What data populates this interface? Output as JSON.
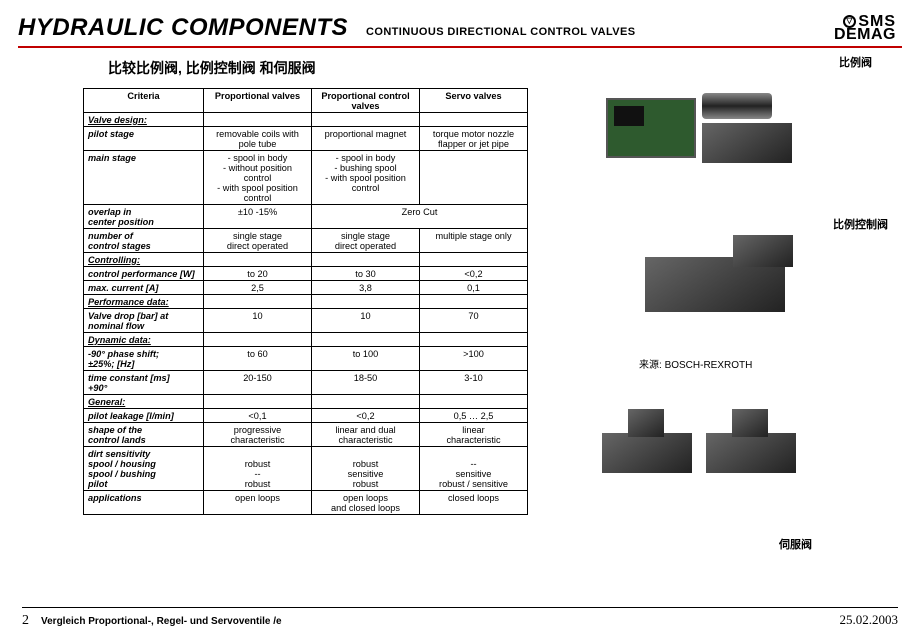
{
  "header": {
    "title_main": "HYDRAULIC COMPONENTS",
    "title_sub": "CONTINUOUS DIRECTIONAL CONTROL VALVES",
    "logo_top": "SMS",
    "logo_bottom": "DEMAG"
  },
  "subtitle": "比较比例阀, 比例控制阀 和伺服阀",
  "table": {
    "headers": [
      "Criteria",
      "Proportional valves",
      "Proportional control valves",
      "Servo valves"
    ],
    "sections": [
      {
        "title": "Valve design:",
        "rows": [
          {
            "label": "pilot stage",
            "c1": "removable coils with pole tube",
            "c2": "proportional magnet",
            "c3": "torque motor nozzle flapper or jet pipe"
          },
          {
            "label": "main stage",
            "c1": "- spool in body\n- without position control\n- with spool position control",
            "c2": "- spool in body\n- bushing spool\n- with spool position control",
            "c3": ""
          },
          {
            "label": "overlap in\ncenter position",
            "c1": "±10 -15%",
            "span23": "Zero Cut"
          },
          {
            "label": "number of\ncontrol stages",
            "c1": "single stage\ndirect operated",
            "c2": "single stage\ndirect operated",
            "c3": "multiple stage only"
          }
        ]
      },
      {
        "title": "Controlling:",
        "rows": [
          {
            "label": "control performance [W]",
            "c1": "to 20",
            "c2": "to 30",
            "c3": "<0,2"
          },
          {
            "label": "max. current [A]",
            "c1": "2,5",
            "c2": "3,8",
            "c3": "0,1"
          }
        ]
      },
      {
        "title": "Performance data:",
        "rows": [
          {
            "label": "Valve drop [bar] at\nnominal flow",
            "c1": "10",
            "c2": "10",
            "c3": "70"
          }
        ]
      },
      {
        "title": "Dynamic data:",
        "rows": [
          {
            "label": "-90° phase shift;\n±25%; [Hz]",
            "c1": "to 60",
            "c2": "to 100",
            "c3": ">100"
          },
          {
            "label": "time constant [ms]\n+90°",
            "c1": "20-150",
            "c2": "18-50",
            "c3": "3-10"
          }
        ]
      },
      {
        "title": "General:",
        "rows": [
          {
            "label": "pilot leakage [l/min]",
            "c1": "<0,1",
            "c2": "<0,2",
            "c3": "0,5 … 2,5"
          },
          {
            "label": "shape of the\ncontrol lands",
            "c1": "progressive\ncharacteristic",
            "c2": "linear and dual\ncharacteristic",
            "c3": "linear\ncharacteristic"
          },
          {
            "label_html": "dirt sensitivity\nspool / housing\nspool / bushing\npilot",
            "c1": "\nrobust\n--\nrobust",
            "c2": "\nrobust\nsensitive\nrobust",
            "c3": "\n--\nsensitive\nrobust / sensitive"
          },
          {
            "label": "applications",
            "c1": "open loops",
            "c2": "open loops\nand closed loops",
            "c3": "closed loops"
          }
        ]
      }
    ]
  },
  "images": {
    "a_caption": "比例阀",
    "b_caption": "比例控制阀",
    "c_caption": "伺服阀",
    "source_label": "来源: ",
    "source_value": "BOSCH-REXROTH"
  },
  "footer": {
    "page": "2",
    "doc_title": "Vergleich Proportional-, Regel- und Servoventile /e",
    "date": "25.02.2003"
  },
  "colors": {
    "rule": "#c00000",
    "text": "#000000",
    "bg": "#ffffff"
  }
}
